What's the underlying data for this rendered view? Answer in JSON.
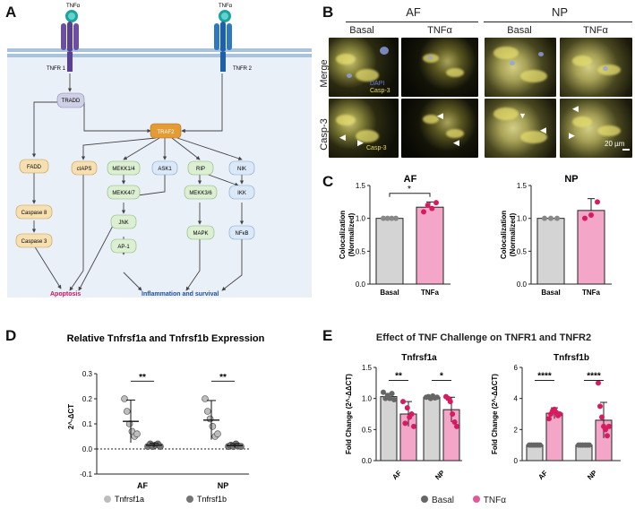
{
  "panels": {
    "a": "A",
    "b": "B",
    "c": "C",
    "d": "D",
    "e": "E"
  },
  "pathway": {
    "ligand_left": "TNFα",
    "ligand_right": "TNFα",
    "receptor_left": "TNFR 1",
    "receptor_right": "TNFR 2",
    "nodes": {
      "tradd": "TRADD",
      "traf2": "TRAF2",
      "fadd": "FADD",
      "caspase8": "Caspase 8",
      "caspase3": "Caspase 3",
      "ciaps": "cIAPS",
      "mekk14": "MEKK1/4",
      "ask1": "ASK1",
      "rip": "RIP",
      "nik": "NIK",
      "mekk47": "MEKK4/7",
      "mekk36": "MEKK3/6",
      "ikk": "IKK",
      "jnk": "JNK",
      "ap1": "AP-1",
      "mapk": "MAPK",
      "nfkb": "NFκB"
    },
    "outcome_apoptosis": "Apoptosis",
    "outcome_inflammation": "Inflammation and survival",
    "colors": {
      "apoptosis": "#c2185b",
      "inflammation": "#1f4e99",
      "bg": "#eaf0f8"
    }
  },
  "micro": {
    "group_af": "AF",
    "group_np": "NP",
    "col_basal": "Basal",
    "col_tnf": "TNFα",
    "col_basal2": "Basal",
    "col_tnf2": "TNFα",
    "row_merge": "Merge",
    "row_casp": "Casp-3",
    "stain_dapi": "DAPI",
    "stain_casp": "Casp-3",
    "stain_casp2": "Casp-3",
    "scale": "20 µm"
  },
  "chart_c": {
    "chart_data": [
      {
        "type": "bar",
        "title": "AF",
        "ylabel": "Colocalization (Normalized)",
        "categories": [
          "Basal",
          "TNFa"
        ],
        "values": [
          1.0,
          1.17
        ],
        "errors": [
          0.0,
          0.08
        ],
        "points": [
          [
            1.0,
            1.0,
            1.0,
            1.0
          ],
          [
            1.1,
            1.2,
            1.15,
            1.24
          ]
        ],
        "ylim": [
          0.0,
          1.5
        ],
        "yticks": [
          "0.0",
          "0.5",
          "1.0",
          "1.5"
        ],
        "sig": "*"
      },
      {
        "type": "bar",
        "title": "NP",
        "ylabel": "Colocalization (Normalized)",
        "categories": [
          "Basal",
          "TNFa"
        ],
        "values": [
          1.0,
          1.12
        ],
        "errors": [
          0.0,
          0.18
        ],
        "points": [
          [
            1.0,
            1.0,
            1.0
          ],
          [
            1.0,
            1.05,
            1.25
          ]
        ],
        "ylim": [
          0.0,
          1.5
        ],
        "yticks": [
          "0.0",
          "0.5",
          "1.0",
          "1.5"
        ],
        "sig": ""
      }
    ]
  },
  "chart_d": {
    "chart_data": {
      "type": "scatter",
      "title": "Relative Tnfrsf1a and Tnfrsf1b Expression",
      "ylabel": "2^-ΔCT",
      "categories": [
        "AF",
        "NP"
      ],
      "ylim": [
        -0.1,
        0.3
      ],
      "yticks": [
        "-0.1",
        "0.0",
        "0.1",
        "0.2",
        "0.3"
      ],
      "series": [
        {
          "name": "Tnfrsf1a",
          "color": "#bdbdbd",
          "means": [
            0.11,
            0.115
          ],
          "sd": [
            0.085,
            0.078
          ],
          "points": [
            [
              0.2,
              0.15,
              0.1,
              0.07,
              0.05,
              0.06
            ],
            [
              0.2,
              0.15,
              0.12,
              0.09,
              0.05,
              0.06
            ]
          ]
        },
        {
          "name": "Tnfrsf1b",
          "color": "#757575",
          "means": [
            0.015,
            0.013
          ],
          "sd": [
            0.008,
            0.008
          ],
          "points": [
            [
              0.01,
              0.02,
              0.01,
              0.015,
              0.02,
              0.01
            ],
            [
              0.01,
              0.015,
              0.01,
              0.02,
              0.012,
              0.01
            ]
          ]
        }
      ],
      "sig": [
        "**",
        "**"
      ]
    }
  },
  "chart_e": {
    "title": "Effect of TNF Challenge on TNFR1 and TNFR2",
    "chart_data": [
      {
        "type": "bar",
        "title": "Tnfrsf1a",
        "ylabel": "Fold Change (2^-ΔΔCT)",
        "categories": [
          "AF",
          "NP"
        ],
        "series": [
          {
            "name": "Basal",
            "values": [
              1.03,
              1.02
            ],
            "errors": [
              0.05,
              0.02
            ]
          },
          {
            "name": "TNFα",
            "values": [
              0.75,
              0.82
            ],
            "errors": [
              0.2,
              0.2
            ]
          }
        ],
        "points": [
          [
            [
              1.1,
              1.0,
              1.05,
              1.0,
              1.08,
              0.98
            ],
            [
              0.95,
              0.6,
              0.85,
              0.7,
              0.75,
              0.55
            ]
          ],
          [
            [
              1.02,
              1.03,
              1.0,
              1.04,
              1.01,
              1.02
            ],
            [
              1.03,
              1.0,
              0.95,
              0.75,
              0.62,
              0.55
            ]
          ]
        ],
        "ylim": [
          0.0,
          1.5
        ],
        "yticks": [
          "0.0",
          "0.5",
          "1.0",
          "1.5"
        ],
        "sig": [
          "**",
          "*"
        ]
      },
      {
        "type": "bar",
        "title": "Tnfrsf1b",
        "ylabel": "Fold Change (2^-ΔΔCT)",
        "categories": [
          "AF",
          "NP"
        ],
        "series": [
          {
            "name": "Basal",
            "values": [
              1.0,
              1.0
            ],
            "errors": [
              0.05,
              0.05
            ]
          },
          {
            "name": "TNFα",
            "values": [
              3.05,
              2.6
            ],
            "errors": [
              0.35,
              1.15
            ]
          }
        ],
        "points": [
          [
            [
              1.0,
              1.0,
              1.0,
              1.0,
              1.0,
              1.0
            ],
            [
              2.7,
              3.0,
              3.2,
              3.3,
              3.1,
              2.9,
              3.0
            ]
          ],
          [
            [
              1.0,
              1.0,
              1.0,
              1.0,
              1.0,
              1.0
            ],
            [
              5.0,
              3.5,
              2.8,
              2.2,
              2.0,
              1.6,
              2.2
            ]
          ]
        ],
        "ylim": [
          0,
          6
        ],
        "yticks": [
          "0",
          "2",
          "4",
          "6"
        ],
        "sig": [
          "****",
          "****"
        ]
      }
    ],
    "legend": {
      "basal": "Basal",
      "tnf": "TNFα"
    }
  }
}
